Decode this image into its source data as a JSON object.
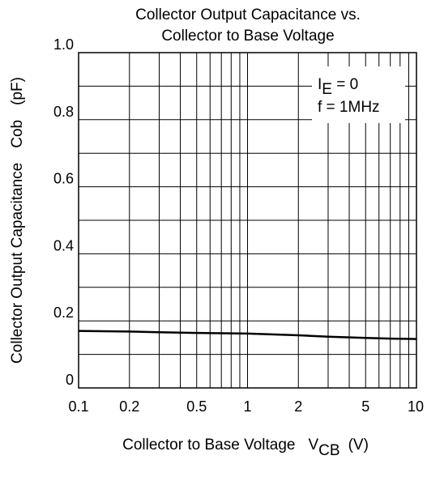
{
  "chart_data": {
    "type": "line",
    "title": "Collector Output Capacitance vs. Collector to Base Voltage",
    "title_lines": [
      "Collector Output Capacitance vs.",
      "Collector to Base Voltage"
    ],
    "xlabel": {
      "text": "Collector to Base Voltage",
      "symbol": "V",
      "symbol_sub": "CB",
      "unit": "(V)"
    },
    "ylabel": {
      "text": "Collector Output Capacitance",
      "symbol": "Cob",
      "unit": "(pF)"
    },
    "x_scale": "log",
    "xlim": [
      0.1,
      10
    ],
    "ylim": [
      0,
      1.0
    ],
    "x_ticks": [
      "0.1",
      "0.2",
      "0.5",
      "1",
      "2",
      "5",
      "10"
    ],
    "x_tick_values": [
      0.1,
      0.2,
      0.5,
      1,
      2,
      5,
      10
    ],
    "y_ticks": [
      "0",
      "0.2",
      "0.4",
      "0.6",
      "0.8",
      "1.0"
    ],
    "y_tick_values": [
      0,
      0.2,
      0.4,
      0.6,
      0.8,
      1.0
    ],
    "y_minor_step": 0.1,
    "grid": true,
    "annotation": {
      "line1_symbol": "I",
      "line1_sub": "E",
      "line1_rest": " = 0",
      "line2": "f = 1MHz",
      "placement": "top-right"
    },
    "series": [
      {
        "x": [
          0.1,
          0.2,
          0.3,
          0.5,
          1,
          2,
          3,
          5,
          7,
          10
        ],
        "values": [
          0.17,
          0.168,
          0.166,
          0.164,
          0.162,
          0.157,
          0.153,
          0.149,
          0.147,
          0.146
        ]
      }
    ]
  }
}
